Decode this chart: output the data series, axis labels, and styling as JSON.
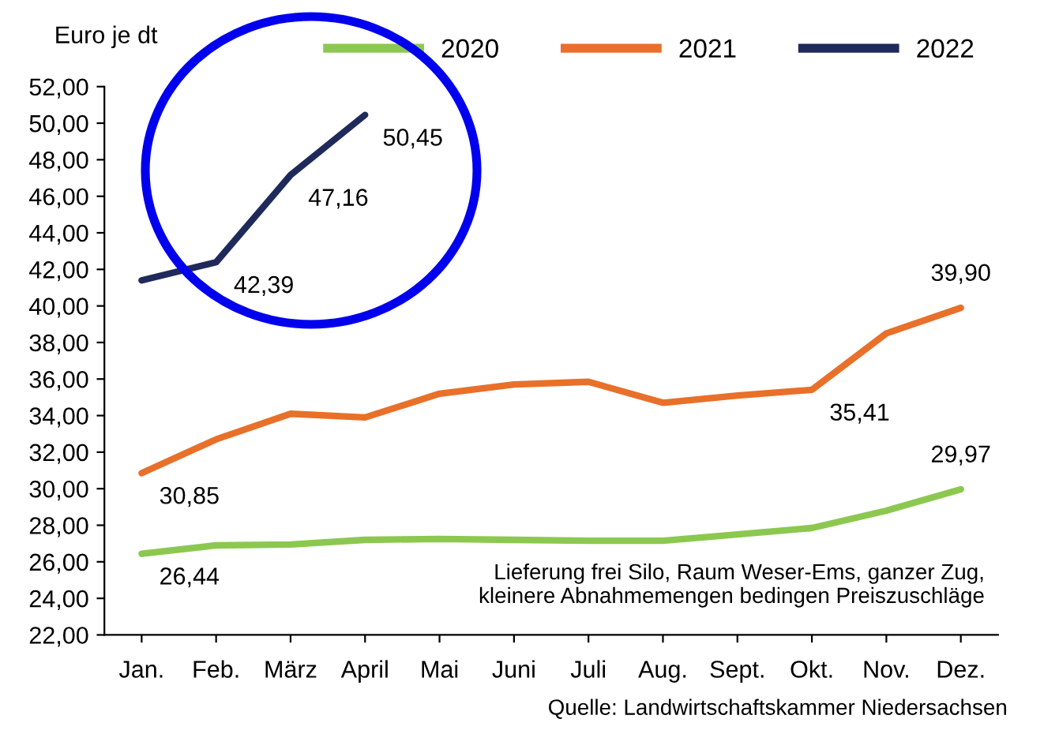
{
  "chart_data": {
    "type": "line",
    "ylabel": "Euro je dt",
    "categories": [
      "Jan.",
      "Feb.",
      "März",
      "April",
      "Mai",
      "Juni",
      "Juli",
      "Aug.",
      "Sept.",
      "Okt.",
      "Nov.",
      "Dez."
    ],
    "series": [
      {
        "name": "2020",
        "color": "#8cc850",
        "values": [
          26.44,
          26.9,
          26.95,
          27.2,
          27.25,
          27.2,
          27.15,
          27.15,
          27.5,
          27.85,
          28.8,
          29.97
        ],
        "value_labels": [
          "26,44",
          null,
          null,
          null,
          null,
          null,
          null,
          null,
          null,
          null,
          null,
          "29,97"
        ]
      },
      {
        "name": "2021",
        "color": "#e8702a",
        "values": [
          30.85,
          32.7,
          34.1,
          33.9,
          35.2,
          35.7,
          35.85,
          34.7,
          35.1,
          35.41,
          38.5,
          39.9
        ],
        "value_labels": [
          "30,85",
          null,
          null,
          null,
          null,
          null,
          null,
          null,
          null,
          "35,41",
          null,
          "39,90"
        ]
      },
      {
        "name": "2022",
        "color": "#1f2a5a",
        "values": [
          41.4,
          42.39,
          47.16,
          50.45,
          null,
          null,
          null,
          null,
          null,
          null,
          null,
          null
        ],
        "value_labels": [
          null,
          "42,39",
          "47,16",
          "50,45",
          null,
          null,
          null,
          null,
          null,
          null,
          null,
          null
        ]
      }
    ],
    "ylim": [
      22,
      52
    ],
    "yticks": [
      {
        "value": 22,
        "label": "22,00"
      },
      {
        "value": 24,
        "label": "24,00"
      },
      {
        "value": 26,
        "label": "26,00"
      },
      {
        "value": 28,
        "label": "28,00"
      },
      {
        "value": 30,
        "label": "30,00"
      },
      {
        "value": 32,
        "label": "32,00"
      },
      {
        "value": 34,
        "label": "34,00"
      },
      {
        "value": 36,
        "label": "36,00"
      },
      {
        "value": 38,
        "label": "38,00"
      },
      {
        "value": 40,
        "label": "40,00"
      },
      {
        "value": 42,
        "label": "42,00"
      },
      {
        "value": 44,
        "label": "44,00"
      },
      {
        "value": 46,
        "label": "46,00"
      },
      {
        "value": 48,
        "label": "48,00"
      },
      {
        "value": 50,
        "label": "50,00"
      },
      {
        "value": 52,
        "label": "52,00"
      }
    ],
    "grid": false,
    "legend": "top right",
    "marker": "none",
    "line_style": "solid",
    "annotations": [
      "Lieferung frei Silo, Raum Weser-Ems, ganzer Zug,\nkleinere Abnahmemengen bedingen Preiszuschläge",
      "Quelle: Landwirtschaftskammer Niedersachsen"
    ]
  }
}
